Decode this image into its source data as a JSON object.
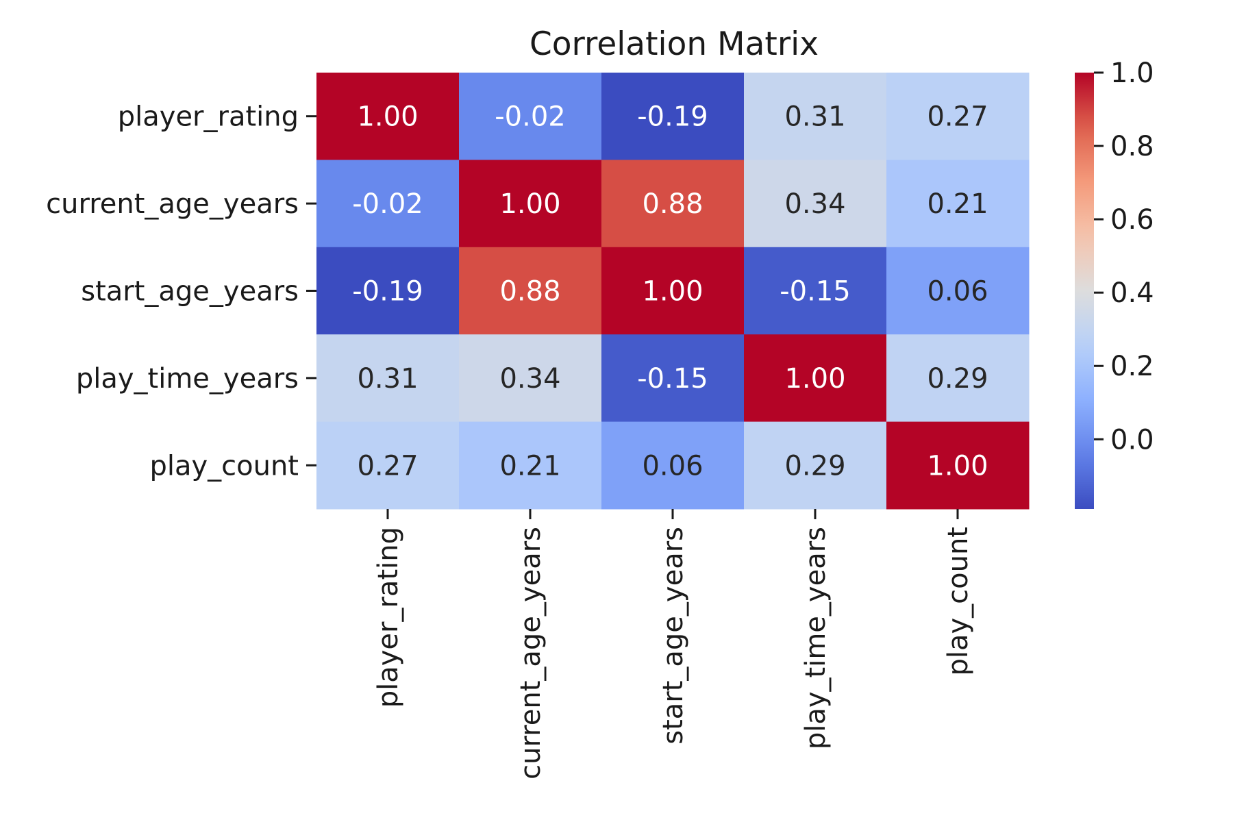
{
  "chart_data": {
    "type": "heatmap",
    "title": "Correlation Matrix",
    "xlabel": "",
    "ylabel": "",
    "row_labels": [
      "player_rating",
      "current_age_years",
      "start_age_years",
      "play_time_years",
      "play_count"
    ],
    "col_labels": [
      "player_rating",
      "current_age_years",
      "start_age_years",
      "play_time_years",
      "play_count"
    ],
    "values": [
      [
        1.0,
        -0.02,
        -0.19,
        0.31,
        0.27
      ],
      [
        -0.02,
        1.0,
        0.88,
        0.34,
        0.21
      ],
      [
        -0.19,
        0.88,
        1.0,
        -0.15,
        0.06
      ],
      [
        0.31,
        0.34,
        -0.15,
        1.0,
        0.29
      ],
      [
        0.27,
        0.21,
        0.06,
        0.29,
        1.0
      ]
    ],
    "value_format": "0.00",
    "colormap": "coolwarm",
    "colorbar": {
      "vmin": -0.19,
      "vmax": 1.0,
      "ticks": [
        0.0,
        0.2,
        0.4,
        0.6,
        0.8,
        1.0
      ],
      "tick_labels": [
        "0.0",
        "0.2",
        "0.4",
        "0.6",
        "0.8",
        "1.0"
      ]
    },
    "grid": false,
    "legend": "colorbar-right"
  }
}
